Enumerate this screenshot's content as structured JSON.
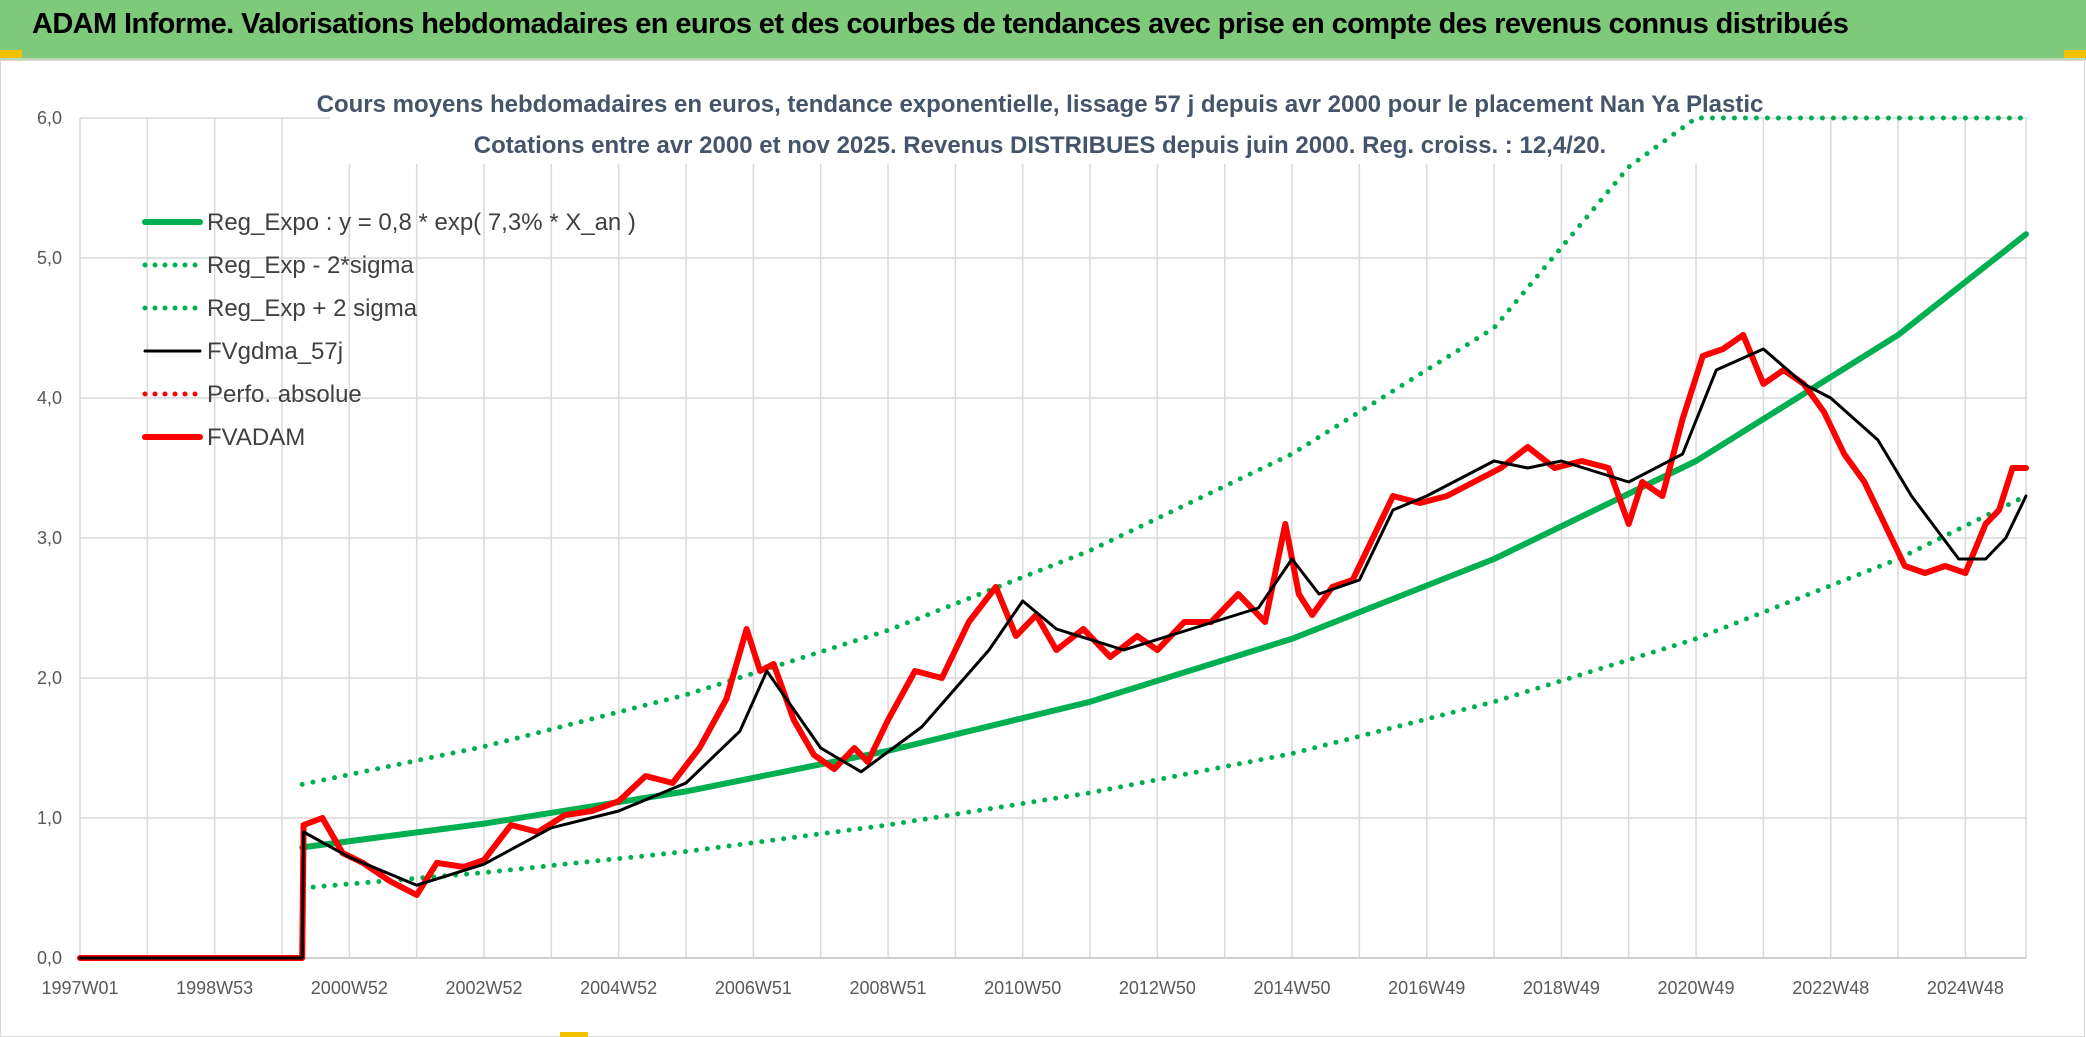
{
  "header": {
    "title": "ADAM Informe. Valorisations hebdomadaires en euros et des courbes de tendances avec prise en compte des revenus connus distribués"
  },
  "colors": {
    "header_bg": "#7ec97a",
    "reg_expo": "#00b050",
    "fvgdma": "#000000",
    "fvadam": "#ff0000",
    "title_text": "#44546a",
    "grid": "#d9d9d9"
  },
  "chart_data": {
    "type": "line",
    "title": "Cours moyens hebdomadaires en euros, tendance exponentielle, lissage 57 j depuis avr 2000 pour le placement Nan Ya Plastic",
    "subtitle": "Cotations entre avr 2000 et nov 2025. Revenus DISTRIBUES depuis juin 2000. Reg. croiss. : 12,4/20.",
    "xlabel": "",
    "ylabel": "",
    "x_range": [
      1997.0,
      2025.9
    ],
    "ylim": [
      0,
      6
    ],
    "y_ticks": [
      "0,0",
      "1,0",
      "2,0",
      "3,0",
      "4,0",
      "5,0",
      "6,0"
    ],
    "x_ticks": [
      {
        "label": "1997W01",
        "x": 1997.0
      },
      {
        "label": "1998W53",
        "x": 1999.0
      },
      {
        "label": "2000W52",
        "x": 2001.0
      },
      {
        "label": "2002W52",
        "x": 2003.0
      },
      {
        "label": "2004W52",
        "x": 2005.0
      },
      {
        "label": "2006W51",
        "x": 2007.0
      },
      {
        "label": "2008W51",
        "x": 2009.0
      },
      {
        "label": "2010W50",
        "x": 2011.0
      },
      {
        "label": "2012W50",
        "x": 2013.0
      },
      {
        "label": "2014W50",
        "x": 2015.0
      },
      {
        "label": "2016W49",
        "x": 2017.0
      },
      {
        "label": "2018W49",
        "x": 2019.0
      },
      {
        "label": "2020W49",
        "x": 2021.0
      },
      {
        "label": "2022W48",
        "x": 2023.0
      },
      {
        "label": "2024W48",
        "x": 2025.0
      }
    ],
    "grid": true,
    "legend_position": "top-left",
    "series": [
      {
        "name": "Reg_Expo : y = 0,8 * exp( 7,3% *  X_an )",
        "style": "solid-thick",
        "color": "#00b050",
        "x": [
          2000.3,
          2003,
          2006,
          2009,
          2012,
          2015,
          2018,
          2021,
          2024,
          2025.9
        ],
        "y": [
          0.79,
          0.96,
          1.19,
          1.48,
          1.83,
          2.28,
          2.85,
          3.55,
          4.45,
          5.17
        ]
      },
      {
        "name": "Reg_Exp - 2*sigma",
        "style": "dotted",
        "color": "#00b050",
        "x": [
          2000.3,
          2003,
          2006,
          2009,
          2012,
          2015,
          2018,
          2021,
          2024,
          2025.9
        ],
        "y": [
          0.5,
          0.61,
          0.76,
          0.95,
          1.18,
          1.46,
          1.83,
          2.28,
          2.85,
          3.3
        ]
      },
      {
        "name": "Reg_Exp + 2 sigma",
        "style": "dotted",
        "color": "#00b050",
        "x": [
          2000.3,
          2003,
          2006,
          2009,
          2012,
          2015,
          2018,
          2020.0,
          2021.0,
          2025.9
        ],
        "y": [
          1.24,
          1.51,
          1.88,
          2.34,
          2.91,
          3.6,
          4.5,
          5.65,
          6.0,
          6.0
        ]
      },
      {
        "name": "FVgdma_57j",
        "style": "solid",
        "color": "#000000",
        "x": [
          1997.0,
          2000.3,
          2000.32,
          2001.0,
          2002.0,
          2003.0,
          2004.0,
          2005.0,
          2006.0,
          2006.8,
          2007.2,
          2008.0,
          2008.6,
          2009.5,
          2010.5,
          2011.0,
          2011.5,
          2012.5,
          2013.5,
          2014.5,
          2015.0,
          2015.4,
          2016.0,
          2016.5,
          2017.0,
          2018.0,
          2018.5,
          2019.0,
          2020.0,
          2020.8,
          2021.3,
          2022.0,
          2022.6,
          2023.0,
          2023.7,
          2024.2,
          2024.9,
          2025.3,
          2025.6,
          2025.9
        ],
        "y": [
          0.0,
          0.0,
          0.9,
          0.72,
          0.52,
          0.67,
          0.93,
          1.05,
          1.25,
          1.62,
          2.05,
          1.5,
          1.33,
          1.65,
          2.2,
          2.55,
          2.35,
          2.2,
          2.35,
          2.5,
          2.85,
          2.6,
          2.7,
          3.2,
          3.3,
          3.55,
          3.5,
          3.55,
          3.4,
          3.6,
          4.2,
          4.35,
          4.1,
          4.0,
          3.7,
          3.3,
          2.85,
          2.85,
          3.0,
          3.3
        ]
      },
      {
        "name": "Perfo. absolue",
        "style": "dotted",
        "color": "#ff0000",
        "x": [],
        "y": []
      },
      {
        "name": "FVADAM",
        "style": "solid-thick",
        "color": "#ff0000",
        "x": [
          1997.0,
          2000.3,
          2000.32,
          2000.6,
          2000.9,
          2001.2,
          2001.6,
          2002.0,
          2002.3,
          2002.7,
          2003.0,
          2003.4,
          2003.8,
          2004.2,
          2004.6,
          2005.0,
          2005.4,
          2005.8,
          2006.2,
          2006.6,
          2006.9,
          2007.1,
          2007.3,
          2007.6,
          2007.9,
          2008.2,
          2008.5,
          2008.7,
          2009.0,
          2009.4,
          2009.8,
          2010.2,
          2010.6,
          2010.9,
          2011.2,
          2011.5,
          2011.9,
          2012.3,
          2012.7,
          2013.0,
          2013.4,
          2013.8,
          2014.2,
          2014.6,
          2014.9,
          2015.1,
          2015.3,
          2015.6,
          2015.9,
          2016.2,
          2016.5,
          2016.9,
          2017.3,
          2017.7,
          2018.1,
          2018.5,
          2018.9,
          2019.3,
          2019.7,
          2020.0,
          2020.2,
          2020.5,
          2020.8,
          2021.1,
          2021.4,
          2021.7,
          2022.0,
          2022.3,
          2022.6,
          2022.9,
          2023.2,
          2023.5,
          2023.8,
          2024.1,
          2024.4,
          2024.7,
          2025.0,
          2025.3,
          2025.5,
          2025.7,
          2025.9
        ],
        "y": [
          0.0,
          0.0,
          0.95,
          1.0,
          0.75,
          0.68,
          0.55,
          0.45,
          0.68,
          0.65,
          0.7,
          0.95,
          0.9,
          1.02,
          1.05,
          1.12,
          1.3,
          1.25,
          1.5,
          1.85,
          2.35,
          2.05,
          2.1,
          1.7,
          1.45,
          1.35,
          1.5,
          1.4,
          1.7,
          2.05,
          2.0,
          2.4,
          2.65,
          2.3,
          2.45,
          2.2,
          2.35,
          2.15,
          2.3,
          2.2,
          2.4,
          2.4,
          2.6,
          2.4,
          3.1,
          2.6,
          2.45,
          2.65,
          2.7,
          3.0,
          3.3,
          3.25,
          3.3,
          3.4,
          3.5,
          3.65,
          3.5,
          3.55,
          3.5,
          3.1,
          3.4,
          3.3,
          3.85,
          4.3,
          4.35,
          4.45,
          4.1,
          4.2,
          4.1,
          3.9,
          3.6,
          3.4,
          3.1,
          2.8,
          2.75,
          2.8,
          2.75,
          3.1,
          3.2,
          3.5,
          3.5
        ]
      }
    ]
  }
}
